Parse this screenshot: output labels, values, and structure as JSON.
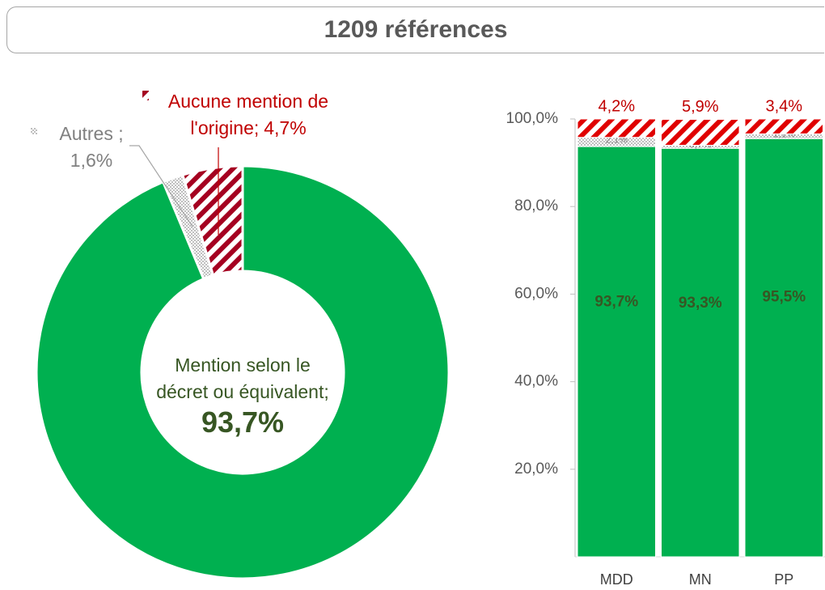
{
  "title": "1209 références",
  "chart_data": [
    {
      "type": "pie",
      "donut": true,
      "categories": [
        "Mention selon le décret ou équivalent;",
        "Autres ;",
        "Aucune mention de l'origine;"
      ],
      "values": [
        93.7,
        1.6,
        4.7
      ],
      "value_labels": [
        "93,7%",
        "1,6%",
        "4,7%"
      ],
      "colors": [
        "#00b050",
        "#bfbfbf",
        "#a50021"
      ],
      "patterns": [
        "solid",
        "dots",
        "stripes"
      ]
    },
    {
      "type": "bar",
      "stacked": true,
      "categories": [
        "MDD",
        "MN",
        "PP"
      ],
      "series": [
        {
          "color": "#00b050",
          "pattern": "solid",
          "values": [
            93.7,
            93.3,
            95.5
          ],
          "value_labels": [
            "93,7%",
            "93,3%",
            "95,5%"
          ]
        },
        {
          "color": "#bfbfbf",
          "pattern": "dots",
          "values": [
            2.1,
            0.7,
            1.1
          ],
          "value_labels": [
            "2,1%",
            "0,7%",
            "1,1%"
          ]
        },
        {
          "color": "#e00000",
          "pattern": "stripes",
          "values": [
            4.2,
            5.9,
            3.4
          ],
          "value_labels": [
            "4,2%",
            "5,9%",
            "3,4%"
          ]
        }
      ],
      "ylim": [
        0,
        100
      ],
      "yticks": [
        {
          "value": 20,
          "label": "20,0%"
        },
        {
          "value": 40,
          "label": "40,0%"
        },
        {
          "value": 60,
          "label": "60,0%"
        },
        {
          "value": 80,
          "label": "80,0%"
        },
        {
          "value": 100,
          "label": "100,0%"
        }
      ],
      "grid": false
    }
  ]
}
